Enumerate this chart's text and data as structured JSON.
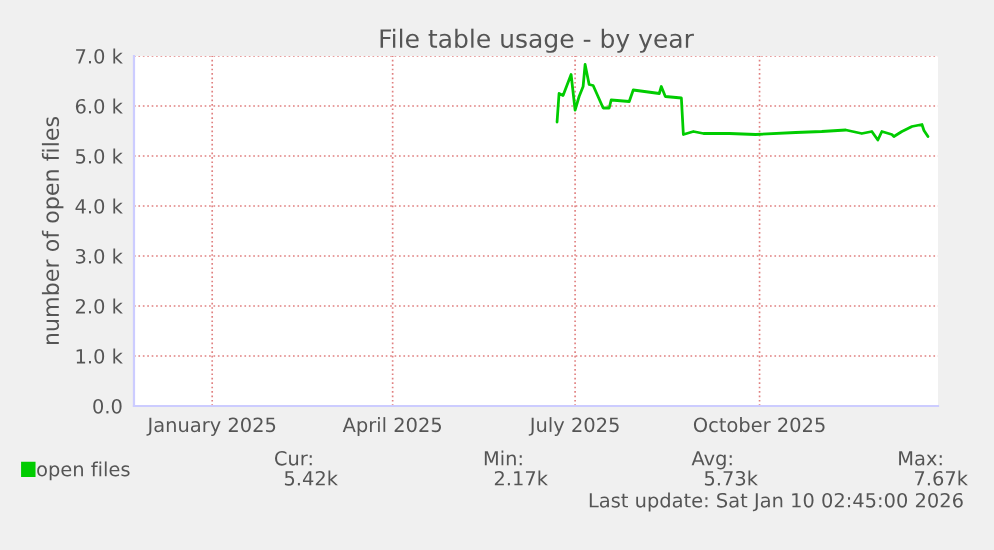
{
  "chart_data": {
    "type": "line",
    "title": "File table usage - by year",
    "ylabel": "number of open files",
    "series": [
      {
        "name": "open files",
        "color": "#00cc00",
        "x": [
          "2025-07-06",
          "2025-07-07",
          "2025-07-09",
          "2025-07-13",
          "2025-07-15",
          "2025-07-17",
          "2025-07-19",
          "2025-07-20",
          "2025-07-22",
          "2025-07-24",
          "2025-07-29",
          "2025-08-01",
          "2025-08-02",
          "2025-08-11",
          "2025-08-13",
          "2025-08-26",
          "2025-08-27",
          "2025-08-29",
          "2025-09-06",
          "2025-09-07",
          "2025-09-12",
          "2025-09-17",
          "2025-09-30",
          "2025-10-13",
          "2025-11-02",
          "2025-11-15",
          "2025-11-27",
          "2025-12-05",
          "2025-12-10",
          "2025-12-13",
          "2025-12-15",
          "2025-12-20",
          "2025-12-21",
          "2025-12-25",
          "2025-12-30",
          "2026-01-04",
          "2026-01-05",
          "2026-01-07"
        ],
        "values": [
          5680,
          6250,
          6210,
          6630,
          5920,
          6190,
          6390,
          6830,
          6430,
          6410,
          5960,
          5960,
          6120,
          6090,
          6320,
          6250,
          6390,
          6190,
          6160,
          5430,
          5490,
          5450,
          5450,
          5430,
          5470,
          5490,
          5520,
          5450,
          5490,
          5320,
          5490,
          5430,
          5390,
          5490,
          5590,
          5630,
          5510,
          5390
        ]
      }
    ],
    "xlim": [
      "2024-12-07",
      "2026-01-12"
    ],
    "xticks": [
      {
        "value": "2025-01-15",
        "label": "January 2025"
      },
      {
        "value": "2025-04-15",
        "label": "April 2025"
      },
      {
        "value": "2025-07-15",
        "label": "July 2025"
      },
      {
        "value": "2025-10-15",
        "label": "October 2025"
      }
    ],
    "ylim": [
      0,
      7000
    ],
    "yticks": [
      {
        "value": 0,
        "label": "0.0"
      },
      {
        "value": 1000,
        "label": "1.0 k"
      },
      {
        "value": 2000,
        "label": "2.0 k"
      },
      {
        "value": 3000,
        "label": "3.0 k"
      },
      {
        "value": 4000,
        "label": "4.0 k"
      },
      {
        "value": 5000,
        "label": "5.0 k"
      },
      {
        "value": 6000,
        "label": "6.0 k"
      },
      {
        "value": 7000,
        "label": "7.0 k"
      }
    ],
    "grid": true,
    "legend": "bottom left",
    "marker": "none",
    "line_style": "solid",
    "annotations": [
      "Cur:",
      "Min:",
      "Avg:",
      "Max:",
      "5.42k",
      "2.17k",
      "5.73k",
      "7.67k",
      "Last update: Sat Jan 10 02:45:00 2026"
    ]
  }
}
